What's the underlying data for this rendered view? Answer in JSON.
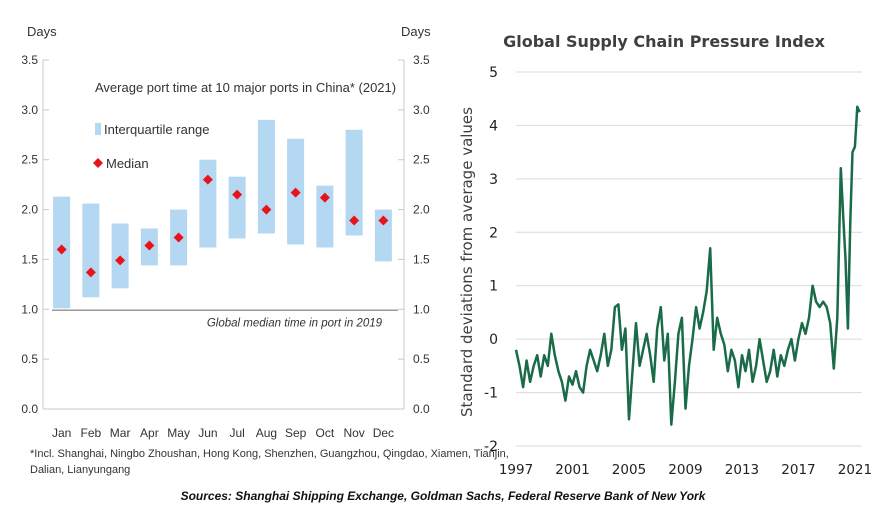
{
  "chart_data": [
    {
      "type": "range-bar",
      "title": "Average  port time at 10 major ports in China* (2021)",
      "ylabel_left": "Days",
      "ylabel_right": "Days",
      "ylim": [
        0,
        3.5
      ],
      "yticks": [
        "0.0",
        "0.5",
        "1.0",
        "1.5",
        "2.0",
        "2.5",
        "3.0",
        "3.5"
      ],
      "categories": [
        "Jan",
        "Feb",
        "Mar",
        "Apr",
        "May",
        "Jun",
        "Jul",
        "Aug",
        "Sep",
        "Oct",
        "Nov",
        "Dec"
      ],
      "series": [
        {
          "name": "Interquartile range",
          "color": "#b4d8f2",
          "low": [
            1.01,
            1.12,
            1.21,
            1.44,
            1.44,
            1.62,
            1.71,
            1.76,
            1.65,
            1.62,
            1.74,
            1.48
          ],
          "high": [
            2.13,
            2.06,
            1.86,
            1.81,
            2.0,
            2.5,
            2.33,
            2.9,
            2.71,
            2.24,
            2.8,
            2.0
          ]
        },
        {
          "name": "Median",
          "color": "#e8141b",
          "values": [
            1.6,
            1.37,
            1.49,
            1.64,
            1.72,
            2.3,
            2.15,
            2.0,
            2.17,
            2.12,
            1.89,
            1.89
          ]
        }
      ],
      "reference_line": {
        "value": 0.99,
        "label": "Global median time in port in 2019"
      },
      "footnote": [
        "*Incl. Shanghai, Ningbo Zhoushan, Hong Kong, Shenzhen, Guangzhou, Qingdao, Xiamen, Tianjin,",
        "Dalian, Lianyungang"
      ]
    },
    {
      "type": "line",
      "title": "Global Supply Chain Pressure Index",
      "ylabel": "Standard deviations from average values",
      "ylim": [
        -2,
        5
      ],
      "yticks": [
        "-2",
        "-1",
        "0",
        "1",
        "2",
        "3",
        "4",
        "5"
      ],
      "xlim": [
        1997,
        2021.5
      ],
      "xticks": [
        "1997",
        "2001",
        "2005",
        "2009",
        "2013",
        "2017",
        "2021"
      ],
      "series": [
        {
          "name": "GSCPI",
          "color": "#1a6b48",
          "x": [
            1997.0,
            1997.25,
            1997.5,
            1997.75,
            1998.0,
            1998.25,
            1998.5,
            1998.75,
            1999.0,
            1999.25,
            1999.5,
            1999.75,
            2000.0,
            2000.25,
            2000.5,
            2000.75,
            2001.0,
            2001.25,
            2001.5,
            2001.75,
            2002.0,
            2002.25,
            2002.5,
            2002.75,
            2003.0,
            2003.25,
            2003.5,
            2003.75,
            2004.0,
            2004.25,
            2004.5,
            2004.75,
            2005.0,
            2005.25,
            2005.5,
            2005.75,
            2006.0,
            2006.25,
            2006.5,
            2006.75,
            2007.0,
            2007.25,
            2007.5,
            2007.75,
            2008.0,
            2008.25,
            2008.5,
            2008.75,
            2009.0,
            2009.25,
            2009.5,
            2009.75,
            2010.0,
            2010.25,
            2010.5,
            2010.75,
            2011.0,
            2011.25,
            2011.5,
            2011.75,
            2012.0,
            2012.25,
            2012.5,
            2012.75,
            2013.0,
            2013.25,
            2013.5,
            2013.75,
            2014.0,
            2014.25,
            2014.5,
            2014.75,
            2015.0,
            2015.25,
            2015.5,
            2015.75,
            2016.0,
            2016.25,
            2016.5,
            2016.75,
            2017.0,
            2017.25,
            2017.5,
            2017.75,
            2018.0,
            2018.25,
            2018.5,
            2018.75,
            2019.0,
            2019.25,
            2019.5,
            2019.75,
            2020.0,
            2020.17,
            2020.33,
            2020.5,
            2020.67,
            2020.83,
            2021.0,
            2021.17,
            2021.33
          ],
          "values": [
            -0.2,
            -0.5,
            -0.9,
            -0.4,
            -0.8,
            -0.5,
            -0.3,
            -0.7,
            -0.3,
            -0.5,
            0.1,
            -0.3,
            -0.6,
            -0.8,
            -1.15,
            -0.7,
            -0.85,
            -0.6,
            -0.9,
            -1.0,
            -0.5,
            -0.2,
            -0.4,
            -0.6,
            -0.3,
            0.1,
            -0.5,
            -0.2,
            0.6,
            0.65,
            -0.2,
            0.2,
            -1.5,
            -0.6,
            0.3,
            -0.5,
            -0.2,
            0.1,
            -0.3,
            -0.8,
            0.2,
            0.6,
            -0.4,
            0.1,
            -1.6,
            -0.8,
            0.1,
            0.4,
            -1.3,
            -0.5,
            0.0,
            0.6,
            0.2,
            0.5,
            0.9,
            1.7,
            -0.2,
            0.4,
            0.1,
            -0.1,
            -0.6,
            -0.2,
            -0.4,
            -0.9,
            -0.3,
            -0.6,
            -0.2,
            -0.8,
            -0.5,
            0.0,
            -0.4,
            -0.8,
            -0.6,
            -0.2,
            -0.7,
            -0.3,
            -0.5,
            -0.2,
            0.0,
            -0.4,
            0.0,
            0.3,
            0.1,
            0.4,
            1.0,
            0.7,
            0.6,
            0.7,
            0.6,
            0.3,
            -0.55,
            0.4,
            3.2,
            2.3,
            1.5,
            0.2,
            2.2,
            3.5,
            3.6,
            4.35,
            4.25
          ]
        }
      ]
    }
  ],
  "source": "Sources: Shanghai Shipping Exchange, Goldman Sachs, Federal Reserve Bank of New York"
}
